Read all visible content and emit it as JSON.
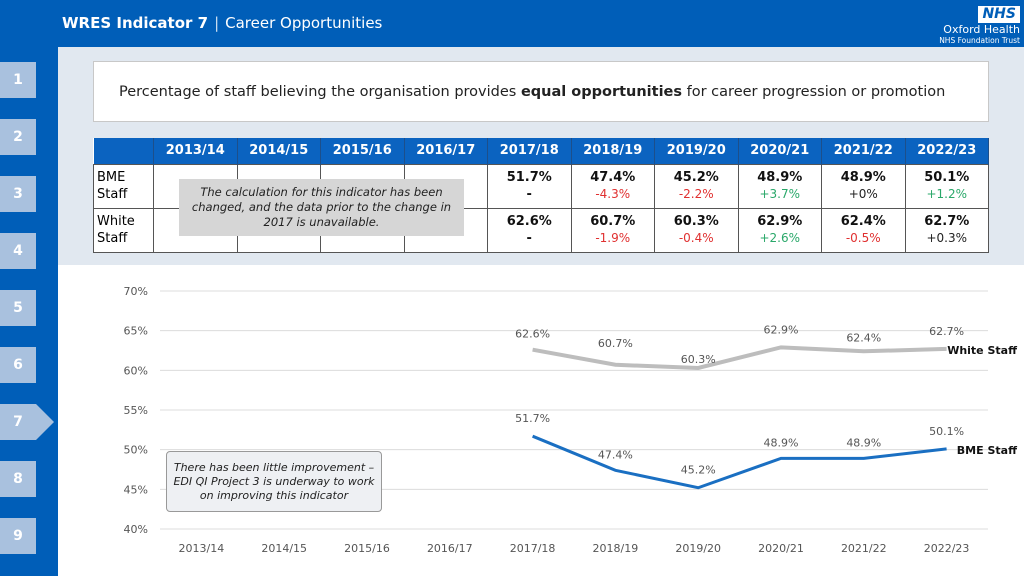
{
  "header": {
    "indicator": "WRES Indicator 7",
    "separator": "|",
    "subtitle": "Career Opportunities"
  },
  "logo": {
    "nhs": "NHS",
    "org": "Oxford Health",
    "trust": "NHS Foundation Trust"
  },
  "nav": {
    "items": [
      "1",
      "2",
      "3",
      "4",
      "5",
      "6",
      "7",
      "8",
      "9"
    ],
    "active": "7"
  },
  "question": {
    "pre": "Percentage of staff believing the organisation provides ",
    "bold": "equal opportunities",
    "post": " for career progression or promotion"
  },
  "table": {
    "headers": [
      "2013/14",
      "2014/15",
      "2015/16",
      "2016/17",
      "2017/18",
      "2018/19",
      "2019/20",
      "2020/21",
      "2021/22",
      "2022/23"
    ],
    "rows": [
      {
        "label": "BME Staff",
        "values": [
          "",
          "",
          "",
          "",
          "51.7%",
          "47.4%",
          "45.2%",
          "48.9%",
          "48.9%",
          "50.1%"
        ],
        "changes": [
          "",
          "",
          "",
          "",
          "-",
          "-4.3%",
          "-2.2%",
          "+3.7%",
          "+0%",
          "+1.2%"
        ]
      },
      {
        "label": "White Staff",
        "values": [
          "",
          "",
          "",
          "",
          "62.6%",
          "60.7%",
          "60.3%",
          "62.9%",
          "62.4%",
          "62.7%"
        ],
        "changes": [
          "",
          "",
          "",
          "",
          "-",
          "-1.9%",
          "-0.4%",
          "+2.6%",
          "-0.5%",
          "+0.3%"
        ]
      }
    ],
    "note": "The calculation for this indicator has been changed, and the data prior to the change in 2017 is unavailable."
  },
  "colors": {
    "brand": "#005EB8",
    "negative": "#e03030",
    "positive": "#2aa86a",
    "white_series": "#bdbdbd",
    "bme_series": "#1a6fc2"
  },
  "chart_data": {
    "type": "line",
    "categories": [
      "2013/14",
      "2014/15",
      "2015/16",
      "2016/17",
      "2017/18",
      "2018/19",
      "2019/20",
      "2020/21",
      "2021/22",
      "2022/23"
    ],
    "ylim": [
      40,
      70
    ],
    "yticks": [
      "40%",
      "45%",
      "50%",
      "55%",
      "60%",
      "65%",
      "70%"
    ],
    "grid": true,
    "series": [
      {
        "name": "White Staff",
        "values": [
          null,
          null,
          null,
          null,
          62.6,
          60.7,
          60.3,
          62.9,
          62.4,
          62.7
        ],
        "labels": [
          "",
          "",
          "",
          "",
          "62.6%",
          "60.7%",
          "60.3%",
          "62.9%",
          "62.4%",
          "62.7%"
        ]
      },
      {
        "name": "BME Staff",
        "values": [
          null,
          null,
          null,
          null,
          51.7,
          47.4,
          45.2,
          48.9,
          48.9,
          50.1
        ],
        "labels": [
          "",
          "",
          "",
          "",
          "51.7%",
          "47.4%",
          "45.2%",
          "48.9%",
          "48.9%",
          "50.1%"
        ]
      }
    ],
    "annotation": "There has been little improvement – EDI QI Project 3 is underway to work on improving this indicator"
  }
}
